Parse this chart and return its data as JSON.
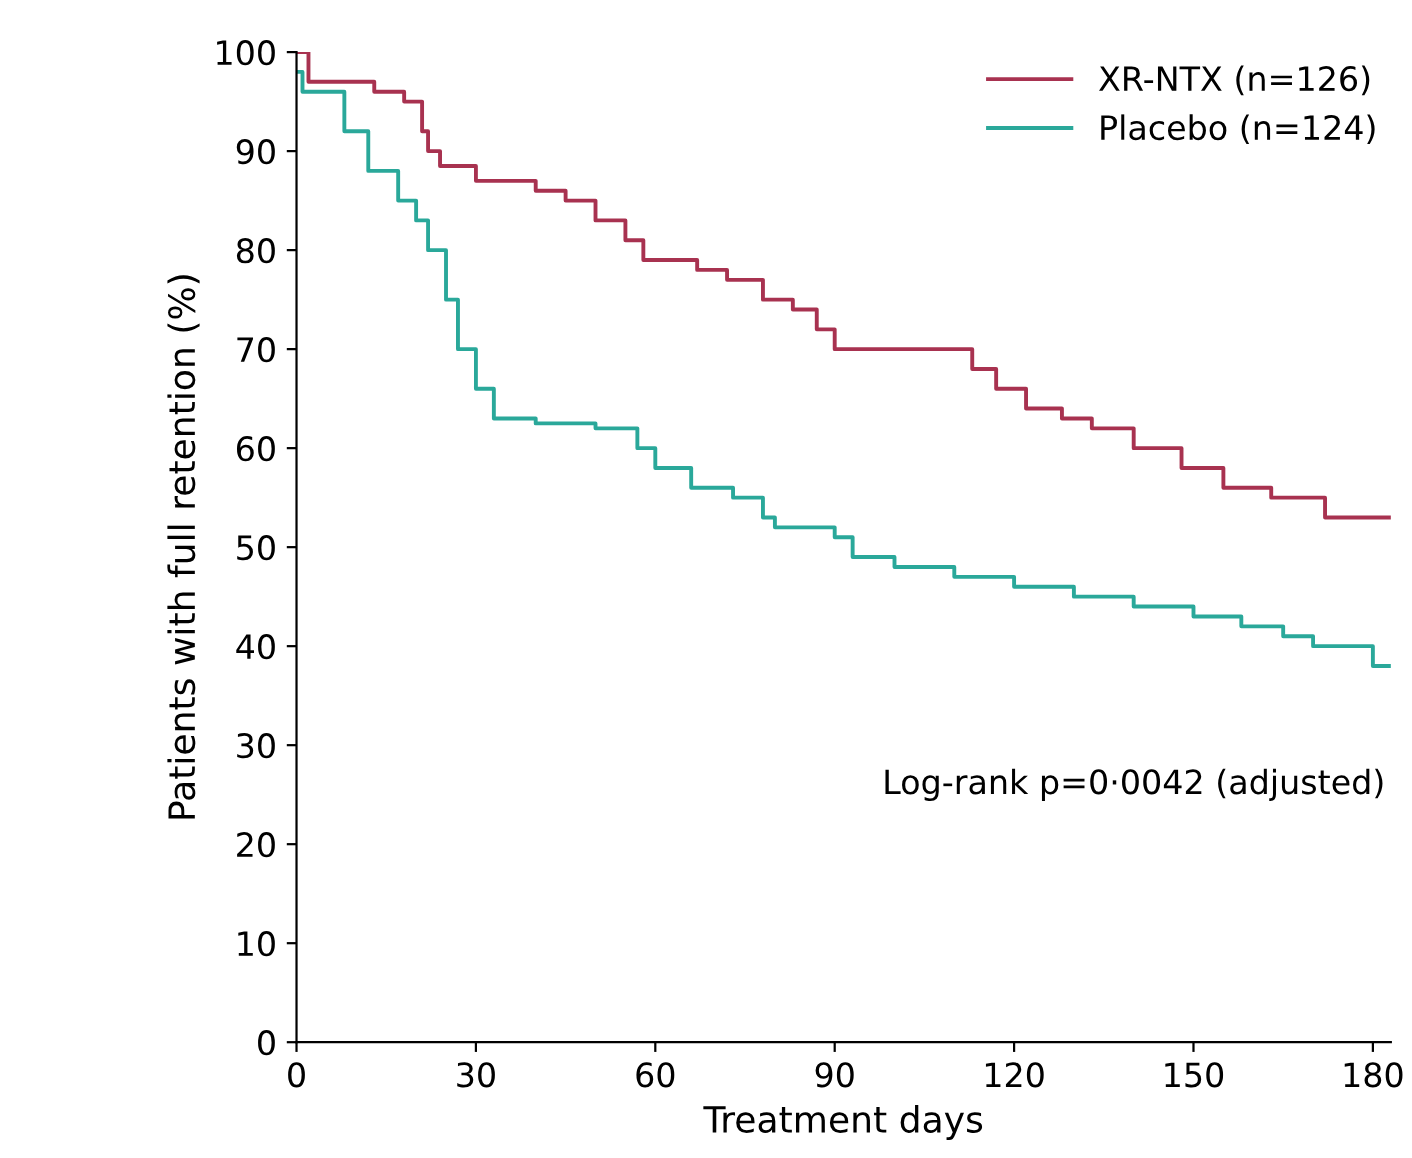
{
  "chart_data": {
    "type": "step",
    "xlabel": "Treatment days",
    "ylabel": "Patients with full retention (%)",
    "xlim": [
      0,
      183
    ],
    "xticks": [
      0,
      30,
      60,
      90,
      120,
      150,
      180
    ],
    "ylim": [
      0,
      100
    ],
    "yticks": [
      0,
      10,
      20,
      30,
      40,
      50,
      60,
      70,
      80,
      90,
      100
    ],
    "grid": false,
    "legend": "top right",
    "marker": "none",
    "line_style": "solid",
    "annotations": [
      "Log-rank p=0·0042 (adjusted)"
    ],
    "series": [
      {
        "name": "XR-NTX (n=126)",
        "color": "#a83250",
        "x": [
          0,
          2,
          13,
          18,
          21,
          22,
          24,
          30,
          40,
          45,
          50,
          55,
          58,
          67,
          72,
          78,
          83,
          87,
          90,
          110,
          113,
          117,
          122,
          128,
          133,
          140,
          148,
          155,
          163,
          172,
          183
        ],
        "values": [
          100,
          97,
          96,
          95,
          92,
          90,
          88.5,
          87,
          86,
          85,
          83,
          81,
          79,
          78,
          77,
          75,
          74,
          72,
          70,
          70,
          68,
          66,
          64,
          63,
          62,
          60,
          58,
          56,
          55,
          53,
          53
        ]
      },
      {
        "name": "Placebo (n=124)",
        "color": "#2aa89a",
        "x": [
          0,
          1,
          8,
          12,
          17,
          20,
          22,
          25,
          27,
          30,
          33,
          40,
          50,
          57,
          60,
          66,
          73,
          78,
          80,
          90,
          93,
          100,
          110,
          120,
          130,
          140,
          150,
          158,
          165,
          170,
          180,
          183
        ],
        "values": [
          98,
          96,
          92,
          88,
          85,
          83,
          80,
          75,
          70,
          66,
          63,
          62.5,
          62,
          60,
          58,
          56,
          55,
          53,
          52,
          51,
          49,
          48,
          47,
          46,
          45,
          44,
          43,
          42,
          41,
          40,
          38,
          38
        ]
      }
    ]
  }
}
